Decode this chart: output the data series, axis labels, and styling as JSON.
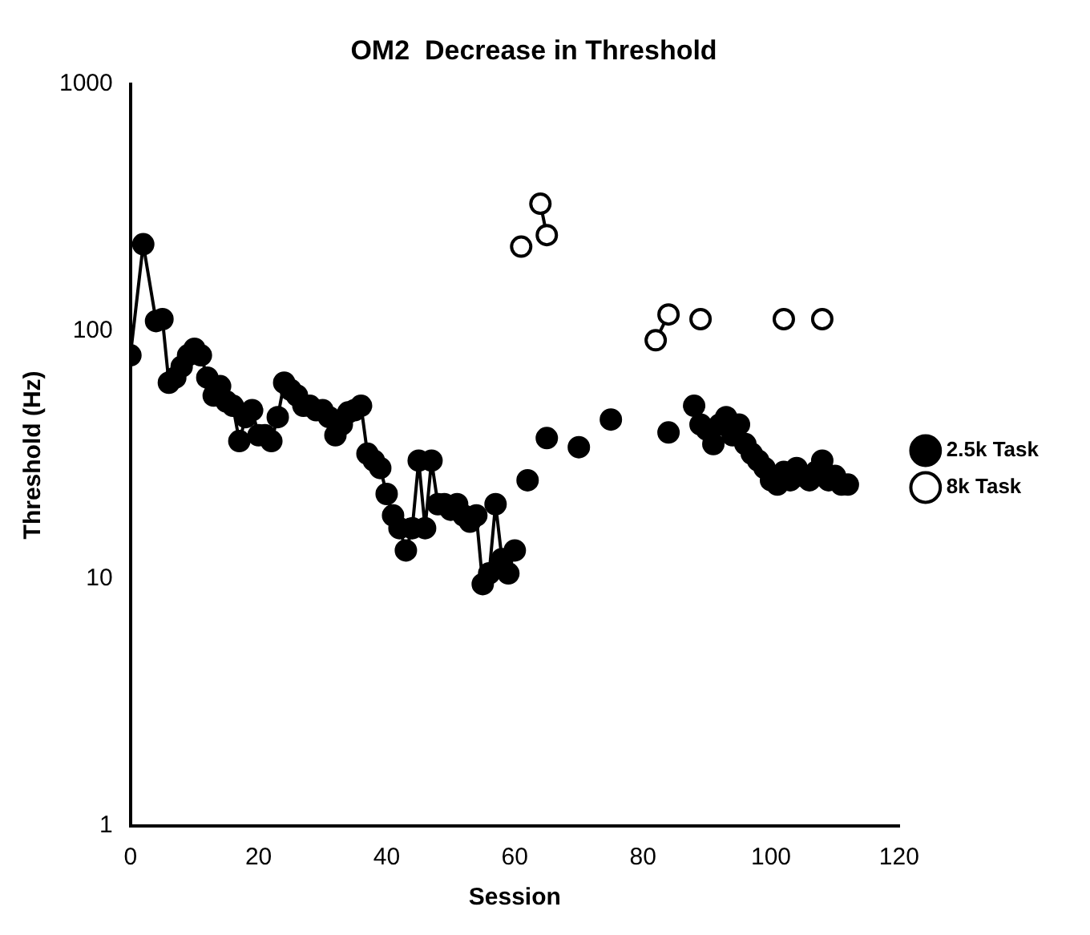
{
  "chart_data": {
    "type": "line",
    "title": "OM2  Decrease in Threshold",
    "xlabel": "Session",
    "ylabel": "Threshold (Hz)",
    "log": "y",
    "xlim": [
      0,
      120
    ],
    "xticks": [
      0,
      20,
      40,
      60,
      80,
      100,
      120
    ],
    "ylim": [
      1,
      1000
    ],
    "yticks": [
      1,
      10,
      100,
      1000
    ],
    "grid": false,
    "legend": "right",
    "marker": "circle",
    "line_style": "solid",
    "series": [
      {
        "name": "2.5k Task",
        "color": "#000000",
        "x": [
          0,
          2,
          4,
          5,
          6,
          7,
          8,
          9,
          10,
          11,
          12,
          13,
          14,
          15,
          16,
          17,
          18,
          19,
          20,
          21,
          22,
          23,
          24,
          25,
          26,
          27,
          28,
          29,
          30,
          31,
          32,
          33,
          34,
          35,
          36,
          37,
          38,
          39,
          40,
          41,
          42,
          43,
          44,
          45,
          46,
          47,
          48,
          49,
          50,
          51,
          52,
          53,
          54,
          55,
          56,
          57,
          58,
          59,
          60,
          61,
          62,
          63,
          65,
          67,
          70,
          72,
          75,
          80,
          84,
          86,
          88,
          89,
          90,
          91,
          92,
          93,
          94,
          95,
          96,
          97,
          98,
          99,
          100,
          101,
          102,
          103,
          104,
          105,
          106,
          107,
          108,
          109,
          110,
          111,
          112
        ],
        "values": [
          80,
          225,
          110,
          112,
          62,
          65,
          72,
          80,
          85,
          80,
          65,
          55,
          60,
          52,
          50,
          36,
          45,
          48,
          38,
          38,
          36,
          45,
          62,
          58,
          55,
          50,
          50,
          48,
          48,
          45,
          38,
          42,
          47,
          48,
          50,
          32,
          30,
          28,
          22,
          18,
          16,
          13,
          16,
          30,
          16,
          30,
          20,
          20,
          19,
          20,
          18,
          17,
          18,
          9.5,
          10.5,
          20,
          12,
          10.5,
          13,
          null,
          25,
          null,
          37,
          null,
          34,
          null,
          44,
          null,
          39,
          null,
          50,
          42,
          40,
          35,
          42,
          45,
          38,
          42,
          35,
          32,
          30,
          28,
          25,
          24,
          27,
          25,
          28,
          26,
          25,
          27,
          30,
          25,
          26,
          24,
          24
        ]
      },
      {
        "name": "8k Task",
        "color": "#000000",
        "x": [
          61,
          62,
          64,
          65,
          70,
          82,
          84,
          87,
          89,
          95,
          102,
          105,
          108
        ],
        "values": [
          220,
          null,
          328,
          245,
          null,
          92,
          117,
          null,
          112,
          null,
          112,
          null,
          112
        ]
      }
    ]
  }
}
